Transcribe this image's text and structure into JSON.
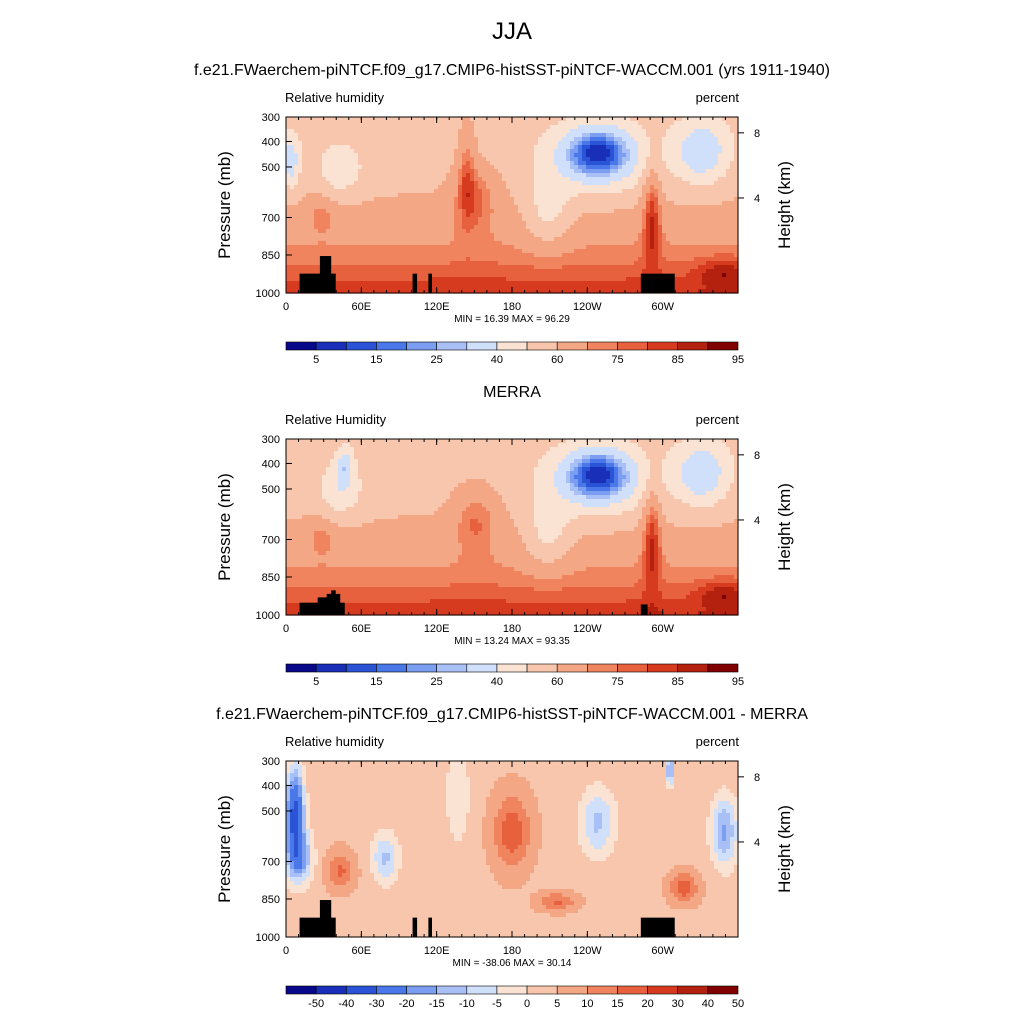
{
  "page": {
    "title": "JJA"
  },
  "colors": {
    "abs_palette": [
      "#08088a",
      "#1a2fb8",
      "#2a53d6",
      "#4a78e8",
      "#7b9ef0",
      "#a8c0f5",
      "#d0e0fb",
      "#fbe3d3",
      "#f8c6ac",
      "#f4a784",
      "#ef845f",
      "#e8613f",
      "#d63a1f",
      "#b5210f",
      "#800000"
    ],
    "diff_palette": [
      "#08088a",
      "#1a2fb8",
      "#2a53d6",
      "#4a78e8",
      "#7b9ef0",
      "#a8c0f5",
      "#d0e0fb",
      "#fbe3d3",
      "#f8c6ac",
      "#f4a784",
      "#ef845f",
      "#e8613f",
      "#d63a1f",
      "#b5210f",
      "#800000"
    ]
  },
  "chart_data": [
    {
      "type": "heatmap",
      "title": "f.e21.FWaerchem-piNTCF.f09_g17.CMIP6-histSST-piNTCF-WACCM.001 (yrs 1911-1940)",
      "left_label": "Relative humidity",
      "right_label": "percent",
      "ylabel": "Pressure (mb)",
      "ylabel_right": "Height (km)",
      "y_ticks": [
        "300",
        "400",
        "500",
        "700",
        "850",
        "1000"
      ],
      "y_right_ticks": [
        "8",
        "4"
      ],
      "x_ticks": [
        "0",
        "60E",
        "120E",
        "180",
        "120W",
        "60W"
      ],
      "min_max": "MIN =  16.39  MAX =  96.29",
      "colorbar_labels": [
        "5",
        "15",
        "25",
        "40",
        "60",
        "75",
        "85",
        "95"
      ],
      "levels": [
        5,
        10,
        15,
        20,
        25,
        30,
        40,
        50,
        60,
        70,
        75,
        80,
        85,
        90,
        95
      ],
      "kind": "model"
    },
    {
      "type": "heatmap",
      "title": "MERRA",
      "left_label": "Relative Humidity",
      "right_label": "percent",
      "ylabel": "Pressure (mb)",
      "ylabel_right": "Height (km)",
      "y_ticks": [
        "300",
        "400",
        "500",
        "700",
        "850",
        "1000"
      ],
      "y_right_ticks": [
        "8",
        "4"
      ],
      "x_ticks": [
        "0",
        "60E",
        "120E",
        "180",
        "120W",
        "60W"
      ],
      "min_max": "MIN =  13.24  MAX =  93.35",
      "colorbar_labels": [
        "5",
        "15",
        "25",
        "40",
        "60",
        "75",
        "85",
        "95"
      ],
      "levels": [
        5,
        10,
        15,
        20,
        25,
        30,
        40,
        50,
        60,
        70,
        75,
        80,
        85,
        90,
        95
      ],
      "kind": "obs"
    },
    {
      "type": "heatmap",
      "title": "f.e21.FWaerchem-piNTCF.f09_g17.CMIP6-histSST-piNTCF-WACCM.001 - MERRA",
      "left_label": "Relative humidity",
      "right_label": "percent",
      "ylabel": "Pressure (mb)",
      "ylabel_right": "Height (km)",
      "y_ticks": [
        "300",
        "400",
        "500",
        "700",
        "850",
        "1000"
      ],
      "y_right_ticks": [
        "8",
        "4"
      ],
      "x_ticks": [
        "0",
        "60E",
        "120E",
        "180",
        "120W",
        "60W"
      ],
      "min_max": "MIN = -38.06  MAX =  30.14",
      "colorbar_labels": [
        "-50",
        "-40",
        "-30",
        "-20",
        "-15",
        "-10",
        "-5",
        "0",
        "5",
        "10",
        "15",
        "20",
        "30",
        "40",
        "50"
      ],
      "levels": [
        -50,
        -40,
        -30,
        -20,
        -15,
        -10,
        -5,
        0,
        5,
        10,
        15,
        20,
        30,
        40,
        50
      ],
      "kind": "diff"
    }
  ]
}
